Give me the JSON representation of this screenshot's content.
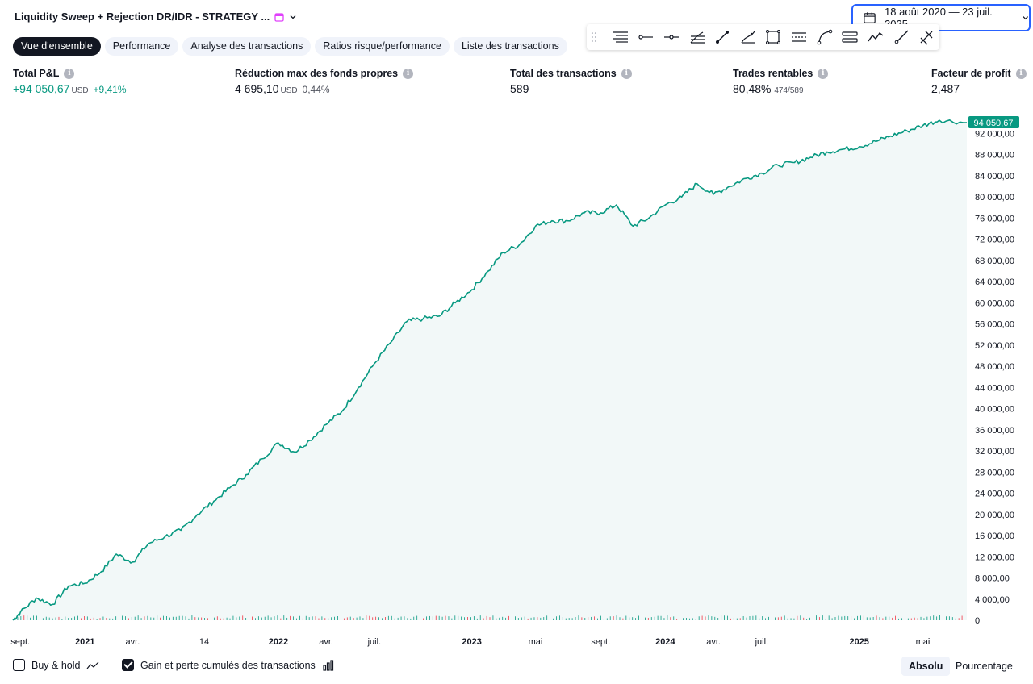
{
  "header": {
    "title": "Liquidity Sweep + Rejection DR/IDR - STRATEGY ...",
    "date_range": "18 août 2020 — 23 juil. 2025"
  },
  "tabs": [
    {
      "label": "Vue d'ensemble",
      "active": true
    },
    {
      "label": "Performance",
      "active": false
    },
    {
      "label": "Analyse des transactions",
      "active": false
    },
    {
      "label": "Ratios risque/performance",
      "active": false
    },
    {
      "label": "Liste des transactions",
      "active": false
    }
  ],
  "drawing_tools": [
    "horizontal-lines-icon",
    "horizontal-ray-icon",
    "cross-line-icon",
    "fib-fan-icon",
    "trend-line-icon",
    "pitchfork-icon",
    "rectangle-icon",
    "parallel-channel-icon",
    "curve-icon",
    "regression-channel-icon",
    "polyline-icon",
    "ray-icon",
    "fib-tool-icon"
  ],
  "stats": {
    "total_pnl": {
      "label": "Total P&L",
      "value": "+94 050,67",
      "unit": "USD",
      "pct": "+9,41%"
    },
    "max_drawdown": {
      "label": "Réduction max des fonds propres",
      "value": "4 695,10",
      "unit": "USD",
      "pct": "0,44%"
    },
    "total_trades": {
      "label": "Total des transactions",
      "value": "589"
    },
    "profitable": {
      "label": "Trades rentables",
      "value": "80,48%",
      "sub": "474/589"
    },
    "profit_factor": {
      "label": "Facteur de profit",
      "value": "2,487"
    }
  },
  "footer": {
    "buy_hold": {
      "label": "Buy & hold",
      "checked": false
    },
    "cumulative": {
      "label": "Gain et perte cumulés des transactions",
      "checked": true
    },
    "mode_absolute": "Absolu",
    "mode_percent": "Pourcentage"
  },
  "colors": {
    "accent": "#2962ff",
    "line": "#089981",
    "fill": "#f2f8f8",
    "win_tick": "#089981",
    "loss_tick": "#f23645"
  },
  "chart_data": {
    "type": "area",
    "title": "",
    "last_value_label": "94 050,67",
    "ylim": [
      0,
      94050.67
    ],
    "yticks": [
      "0",
      "4 000,00",
      "8 000,00",
      "12 000,00",
      "16 000,00",
      "20 000,00",
      "24 000,00",
      "28 000,00",
      "32 000,00",
      "36 000,00",
      "40 000,00",
      "44 000,00",
      "48 000,00",
      "52 000,00",
      "56 000,00",
      "60 000,00",
      "64 000,00",
      "68 000,00",
      "72 000,00",
      "76 000,00",
      "80 000,00",
      "84 000,00",
      "88 000,00",
      "92 000,00"
    ],
    "ytick_values": [
      0,
      4000,
      8000,
      12000,
      16000,
      20000,
      24000,
      28000,
      32000,
      36000,
      40000,
      44000,
      48000,
      52000,
      56000,
      60000,
      64000,
      68000,
      72000,
      76000,
      80000,
      84000,
      88000,
      92000
    ],
    "xlim": [
      "2020-08-18",
      "2025-07-23"
    ],
    "xticks": [
      {
        "label": "sept.",
        "date": "2020-09-01",
        "bold": false
      },
      {
        "label": "2021",
        "date": "2021-01-01",
        "bold": true
      },
      {
        "label": "avr.",
        "date": "2021-04-01",
        "bold": false
      },
      {
        "label": "14",
        "date": "2021-08-14",
        "bold": false
      },
      {
        "label": "2022",
        "date": "2022-01-01",
        "bold": true
      },
      {
        "label": "avr.",
        "date": "2022-04-01",
        "bold": false
      },
      {
        "label": "juil.",
        "date": "2022-07-01",
        "bold": false
      },
      {
        "label": "2023",
        "date": "2023-01-01",
        "bold": true
      },
      {
        "label": "mai",
        "date": "2023-05-01",
        "bold": false
      },
      {
        "label": "sept.",
        "date": "2023-09-01",
        "bold": false
      },
      {
        "label": "2024",
        "date": "2024-01-01",
        "bold": true
      },
      {
        "label": "avr.",
        "date": "2024-04-01",
        "bold": false
      },
      {
        "label": "juil.",
        "date": "2024-07-01",
        "bold": false
      },
      {
        "label": "2025",
        "date": "2025-01-01",
        "bold": true
      },
      {
        "label": "mai",
        "date": "2025-05-01",
        "bold": false
      }
    ],
    "series": [
      {
        "x": [
          "2020-08-18",
          "2020-09-01",
          "2020-10-01",
          "2020-11-01",
          "2020-12-01",
          "2021-01-01",
          "2021-02-01",
          "2021-03-01",
          "2021-04-01",
          "2021-05-01",
          "2021-06-01",
          "2021-07-01",
          "2021-08-01",
          "2021-09-01",
          "2021-10-01",
          "2021-11-01",
          "2021-12-01",
          "2022-01-01",
          "2022-02-01",
          "2022-03-01",
          "2022-04-01",
          "2022-05-01",
          "2022-06-01",
          "2022-07-01",
          "2022-08-01",
          "2022-09-01",
          "2022-10-01",
          "2022-11-01",
          "2022-12-01",
          "2023-01-01",
          "2023-02-01",
          "2023-03-01",
          "2023-04-01",
          "2023-05-01",
          "2023-06-01",
          "2023-07-01",
          "2023-08-01",
          "2023-09-01",
          "2023-10-01",
          "2023-11-01",
          "2023-12-01",
          "2024-01-01",
          "2024-02-01",
          "2024-03-01",
          "2024-04-01",
          "2024-05-01",
          "2024-06-01",
          "2024-07-01",
          "2024-08-01",
          "2024-09-01",
          "2024-10-01",
          "2024-11-01",
          "2024-12-01",
          "2025-01-01",
          "2025-02-01",
          "2025-03-01",
          "2025-04-01",
          "2025-05-01",
          "2025-06-01",
          "2025-07-23"
        ],
        "values": [
          0,
          1500,
          4200,
          3000,
          6500,
          7000,
          9200,
          12500,
          11000,
          14500,
          15800,
          17000,
          20000,
          22500,
          25000,
          27500,
          30500,
          33500,
          31800,
          34000,
          37000,
          39500,
          44000,
          48500,
          52500,
          56500,
          57000,
          57500,
          60000,
          62500,
          66000,
          69500,
          71000,
          74500,
          75500,
          75500,
          77000,
          77000,
          78500,
          74500,
          76000,
          78500,
          80000,
          82500,
          80500,
          82000,
          83500,
          84500,
          86000,
          86500,
          87500,
          88500,
          89000,
          89500,
          90500,
          91500,
          92500,
          93500,
          94500,
          94050.67
        ]
      }
    ],
    "marker": "area-with-trade-ticks"
  }
}
